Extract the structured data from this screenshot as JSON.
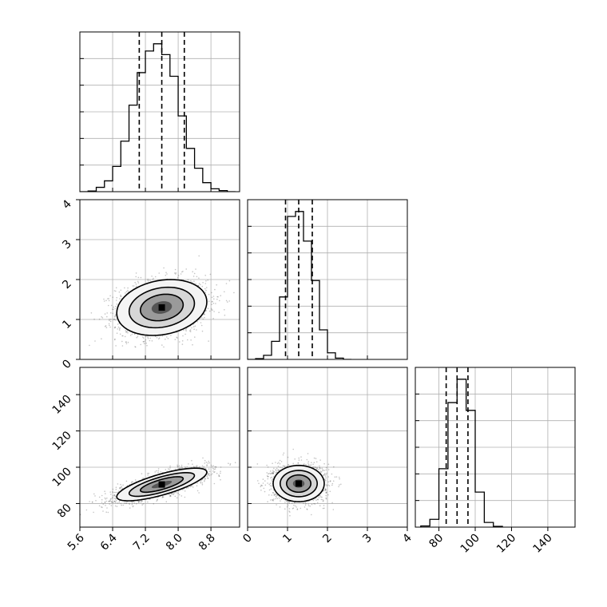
{
  "chart_data": {
    "type": "corner",
    "title": "",
    "parameters": 3,
    "grid": true,
    "colors": {
      "line": "#000000",
      "grid": "#b0b0b0",
      "points": "#555555"
    },
    "axes": {
      "p0": {
        "range": [
          5.6,
          9.5
        ],
        "ticks": [
          5.6,
          6.4,
          7.2,
          8.0,
          8.8
        ],
        "tick_labels": [
          "5.6",
          "6.4",
          "7.2",
          "8.0",
          "8.8"
        ]
      },
      "p1": {
        "range": [
          0,
          4
        ],
        "ticks": [
          0,
          1,
          2,
          3,
          4
        ],
        "tick_labels": [
          "0",
          "1",
          "2",
          "3",
          "4"
        ]
      },
      "p2": {
        "range": [
          67,
          155
        ],
        "ticks": [
          80,
          100,
          120,
          140
        ],
        "tick_labels": [
          "80",
          "100",
          "120",
          "140"
        ]
      }
    },
    "marginals": [
      {
        "param": "p0",
        "quantiles": [
          7.05,
          7.6,
          8.15
        ],
        "bin_edges": [
          5.6,
          5.8,
          6.0,
          6.2,
          6.4,
          6.6,
          6.8,
          7.0,
          7.2,
          7.4,
          7.6,
          7.8,
          8.0,
          8.2,
          8.4,
          8.6,
          8.8,
          9.0,
          9.2,
          9.4
        ],
        "counts": [
          0,
          2,
          12,
          30,
          70,
          140,
          240,
          330,
          390,
          410,
          380,
          320,
          210,
          120,
          65,
          25,
          8,
          3,
          0
        ]
      },
      {
        "param": "p1",
        "quantiles": [
          0.95,
          1.28,
          1.62
        ],
        "bin_edges": [
          0.0,
          0.2,
          0.4,
          0.6,
          0.8,
          1.0,
          1.2,
          1.4,
          1.6,
          1.8,
          2.0,
          2.2,
          2.4,
          2.6
        ],
        "counts": [
          0,
          5,
          25,
          110,
          380,
          870,
          900,
          720,
          480,
          180,
          40,
          8,
          0
        ]
      },
      {
        "param": "p2",
        "quantiles": [
          84,
          90,
          96
        ],
        "bin_edges": [
          70,
          75,
          80,
          85,
          90,
          95,
          100,
          105,
          110,
          115
        ],
        "counts": [
          3,
          20,
          150,
          320,
          380,
          300,
          90,
          12,
          2
        ]
      }
    ],
    "pairs": [
      {
        "x": "p0",
        "y": "p1",
        "mean": [
          7.6,
          1.3
        ],
        "sd": [
          0.55,
          0.35
        ],
        "rho": 0.2
      },
      {
        "x": "p0",
        "y": "p2",
        "mean": [
          7.6,
          90.5
        ],
        "sd": [
          0.55,
          4.5
        ],
        "rho": 0.75
      },
      {
        "x": "p1",
        "y": "p2",
        "mean": [
          1.28,
          91
        ],
        "sd": [
          0.32,
          5.0
        ],
        "rho": 0.0
      }
    ]
  }
}
